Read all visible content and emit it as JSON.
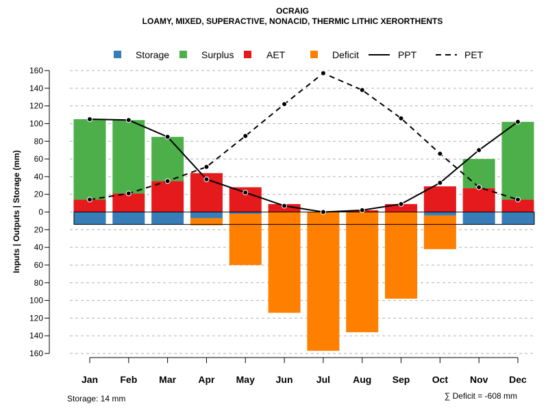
{
  "chart_data": {
    "type": "bar",
    "title": "OCRAIG",
    "subtitle": "LOAMY, MIXED, SUPERACTIVE, NONACID, THERMIC LITHIC XERORTHENTS",
    "ylabel": "Inputs | Outputs | Storage    (mm)",
    "ylim": [
      -160,
      160
    ],
    "yticks": [
      160,
      140,
      120,
      100,
      80,
      60,
      40,
      20,
      0,
      -20,
      -40,
      -60,
      -80,
      -100,
      -120,
      -140,
      -160
    ],
    "ytick_labels": [
      "160",
      "140",
      "120",
      "100",
      "80",
      "60",
      "40",
      "20",
      "0",
      "20",
      "40",
      "60",
      "80",
      "100",
      "120",
      "140",
      "160"
    ],
    "grid": true,
    "legend_position": "top",
    "categories": [
      "Jan",
      "Feb",
      "Mar",
      "Apr",
      "May",
      "Jun",
      "Jul",
      "Aug",
      "Sep",
      "Oct",
      "Nov",
      "Dec"
    ],
    "series": [
      {
        "name": "Storage",
        "color": "#377EB8",
        "values": [
          -14,
          -14,
          -14,
          -7,
          -2,
          0,
          0,
          0,
          0,
          -4,
          -14,
          -14
        ]
      },
      {
        "name": "Surplus",
        "color": "#4DAF4A",
        "values": [
          91,
          83,
          50,
          0,
          0,
          0,
          0,
          0,
          0,
          0,
          33,
          88
        ]
      },
      {
        "name": "AET",
        "color": "#E41A1C",
        "values": [
          14,
          21,
          35,
          44,
          28,
          9,
          0,
          2,
          9,
          29,
          27,
          14
        ]
      },
      {
        "name": "Deficit",
        "color": "#FF7F00",
        "values": [
          0,
          0,
          0,
          -8,
          -58,
          -114,
          -157,
          -136,
          -98,
          -38,
          0,
          0
        ]
      },
      {
        "name": "PPT",
        "color": "#000000",
        "style": "solid",
        "values": [
          105,
          104,
          85,
          37,
          22,
          7,
          0,
          2,
          9,
          33,
          70,
          102
        ]
      },
      {
        "name": "PET",
        "color": "#000000",
        "style": "dashed",
        "values": [
          14,
          21,
          35,
          51,
          86,
          122,
          157,
          138,
          106,
          66,
          28,
          14
        ]
      }
    ],
    "footer_left": "Storage: 14 mm",
    "footer_right": "∑ Deficit = -608 mm",
    "storage_capacity": 14
  }
}
